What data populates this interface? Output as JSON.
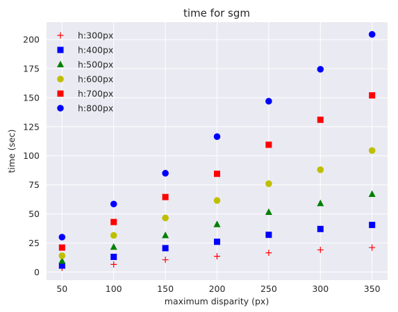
{
  "chart_data": {
    "type": "scatter",
    "title": "time for sgm",
    "xlabel": "maximum disparity (px)",
    "ylabel": "time (sec)",
    "x": [
      50,
      100,
      150,
      200,
      250,
      300,
      350
    ],
    "xticks": [
      50,
      100,
      150,
      200,
      250,
      300,
      350
    ],
    "yticks": [
      0,
      25,
      50,
      75,
      100,
      125,
      150,
      175,
      200
    ],
    "xlim": [
      35,
      365
    ],
    "ylim": [
      -7,
      215
    ],
    "grid": true,
    "legend_position": "top-left",
    "background_color": "#eaeaf2",
    "series": [
      {
        "name": "h:300px",
        "marker": "plus",
        "color": "#ff0000",
        "values": [
          3.5,
          6.5,
          10.5,
          13.5,
          16.5,
          19,
          21
        ]
      },
      {
        "name": "h:400px",
        "marker": "square",
        "color": "#0000ff",
        "values": [
          5.5,
          13,
          20.5,
          26,
          32,
          37,
          40.5
        ]
      },
      {
        "name": "h:500px",
        "marker": "triangle",
        "color": "#008000",
        "values": [
          9.5,
          21.5,
          31.5,
          41,
          51.5,
          59,
          67
        ]
      },
      {
        "name": "h:600px",
        "marker": "circle",
        "color": "#bfbf00",
        "values": [
          14,
          31.5,
          46.5,
          61.5,
          76,
          88,
          104.5
        ]
      },
      {
        "name": "h:700px",
        "marker": "square",
        "color": "#ff0000",
        "values": [
          21,
          43,
          64.5,
          84.5,
          109.5,
          131,
          152
        ]
      },
      {
        "name": "h:800px",
        "marker": "circle",
        "color": "#0000ff",
        "values": [
          30,
          58.5,
          85,
          116.5,
          147,
          174.5,
          204.5
        ]
      }
    ]
  }
}
